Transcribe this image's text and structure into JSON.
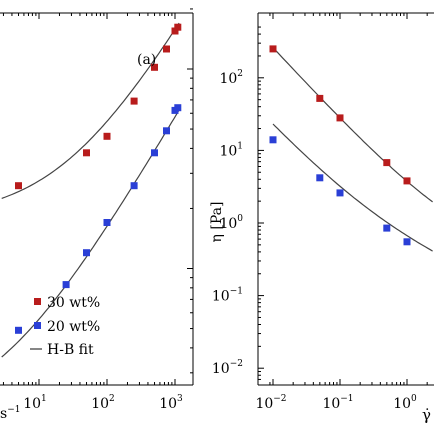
{
  "chart_data": [
    {
      "type": "scatter",
      "panel_label": "(a)",
      "x_scale": "log",
      "x_tick_labels": [
        {
          "base": "10",
          "exp": "1",
          "value": 10
        },
        {
          "base": "10",
          "exp": "2",
          "value": 100
        },
        {
          "base": "10",
          "exp": "3",
          "value": 1000
        }
      ],
      "xlabel_fragment": "s",
      "xlabel_fragment_exp": "−1",
      "y_scale": "log",
      "series": [
        {
          "name": "30 wt%",
          "color": "#b81c1c",
          "marker": "square",
          "x": [
            5,
            50,
            100,
            250,
            500,
            750,
            1000,
            1100
          ],
          "y": [
            0.26,
            0.38,
            0.46,
            0.69,
            1.02,
            1.26,
            1.55,
            1.62
          ]
        },
        {
          "name": "20 wt%",
          "color": "#2a3fd6",
          "marker": "square",
          "x": [
            5,
            25,
            50,
            100,
            250,
            500,
            750,
            1000,
            1100
          ],
          "y": [
            0.049,
            0.083,
            0.12,
            0.17,
            0.26,
            0.38,
            0.49,
            0.62,
            0.64
          ]
        }
      ],
      "fit_label": "H-B fit",
      "fit_color": "#444444"
    },
    {
      "type": "scatter",
      "x_scale": "log",
      "x_tick_labels": [
        {
          "base": "10",
          "exp": "−2",
          "value": 0.01
        },
        {
          "base": "10",
          "exp": "−1",
          "value": 0.1
        },
        {
          "base": "10",
          "exp": "0",
          "value": 1
        }
      ],
      "xlabel": "γ̇",
      "y_scale": "log",
      "y_tick_labels": [
        {
          "base": "10",
          "exp": "−2",
          "value": 0.01
        },
        {
          "base": "10",
          "exp": "−1",
          "value": 0.1
        },
        {
          "base": "10",
          "exp": "0",
          "value": 1
        },
        {
          "base": "10",
          "exp": "1",
          "value": 10
        },
        {
          "base": "10",
          "exp": "2",
          "value": 100
        }
      ],
      "ylabel": "η [Pa]",
      "ylim": [
        0.0067,
        520
      ],
      "series": [
        {
          "name": "30 wt%",
          "color": "#b81c1c",
          "marker": "square",
          "x": [
            0.01,
            0.05,
            0.1,
            0.5,
            1.0
          ],
          "y": [
            250,
            52,
            28,
            6.8,
            3.8
          ]
        },
        {
          "name": "20 wt%",
          "color": "#2a3fd6",
          "marker": "square",
          "x": [
            0.01,
            0.05,
            0.1,
            0.5,
            1.0
          ],
          "y": [
            14,
            4.2,
            2.6,
            0.85,
            0.55
          ]
        }
      ],
      "fit_color": "#444444"
    }
  ]
}
